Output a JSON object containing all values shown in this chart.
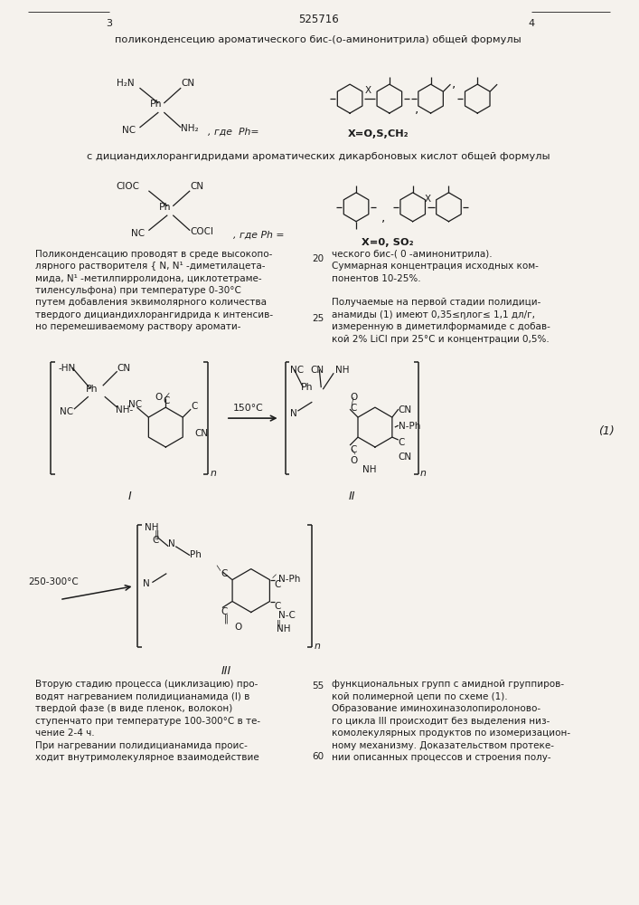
{
  "figsize": [
    7.07,
    10.0
  ],
  "dpi": 100,
  "bg_color": "#f0ede8",
  "text_color": "#1a1a1a",
  "patent_number": "525716",
  "page_left": "3",
  "page_right": "4",
  "line1": "поликонденсецию ароматического бис-(о-аминонитрила) общей формулы",
  "text_X_O_S_CH2": "X=O,S,CH₂",
  "text_X_O_SO2": "X=0, SO₂",
  "line_dician": "с дициандихлорангидридами ароматических дикарбоновых кислот общей формулы",
  "body_left_col": [
    "Поликонденсацию проводят в среде высокопо-",
    "лярного растворителя { N, N¹ -диметилацета-",
    "мида, N¹ -метилпирролидона, циклотетраме-",
    "тиленсульфона) при температуре 0-30°C",
    "путем добавления эквимолярного количества",
    "твердого дициандихлорангидрида к интенсив-",
    "но перемешиваемому раствору аромати-"
  ],
  "body_right_col": [
    "ческого бис-( 0 -аминонитрила).",
    "Суммарная концентрация исходных ком-",
    "понентов 10-25%."
  ],
  "body_right_col2": [
    "Получаемые на первой стадии полидици-",
    "анамиды (1) имеют 0,35≤ηлог≤ 1,1 дл/г,",
    "измеренную в диметилформамиде с добав-",
    "кой 2% LiCl при 25°C и концентрации 0,5%."
  ],
  "body_left_bottom": [
    "Вторую стадию процесса (циклизацию) про-",
    "водят нагреванием полидицианамида (I) в",
    "твердой фазе (в виде пленок, волокон)",
    "ступенчато при температуре 100-300°C в те-",
    "чение 2-4 ч.",
    "При нагревании полидицианамида проис-",
    "ходит внутримолекулярное взаимодействие"
  ],
  "body_right_bottom": [
    "функциональных групп с амидной группиров-",
    "кой полимерной цепи по схеме (1).",
    "Образование иминохиназолопиролоново-",
    "го цикла III происходит без выделения низ-",
    "комолекулярных продуктов по изомеризацион-",
    "ному механизму. Доказательством протеке-",
    "нии описанных процессов и строения полу-"
  ]
}
